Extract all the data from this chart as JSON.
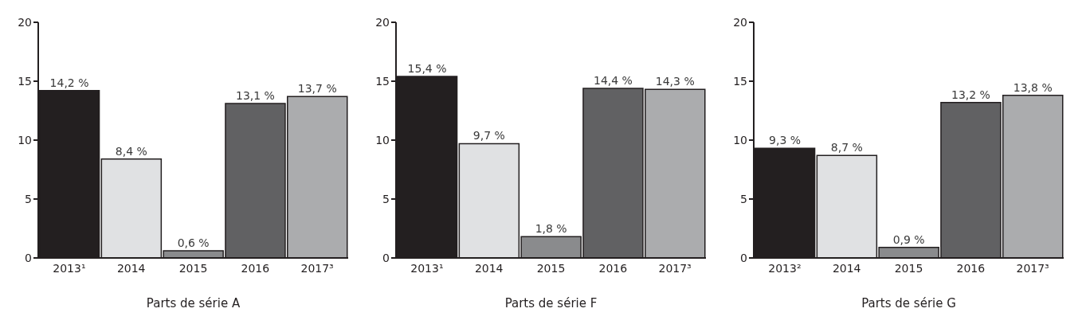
{
  "chart_data": [
    {
      "type": "bar",
      "xlabel": "Parts de série A",
      "categories": [
        "2013¹",
        "2014",
        "2015",
        "2016",
        "2017³"
      ],
      "values": [
        14.2,
        8.4,
        0.6,
        13.1,
        13.7
      ],
      "value_labels": [
        "14,2 %",
        "8,4 %",
        "0,6 %",
        "13,1 %",
        "13,7 %"
      ],
      "colors": [
        "#231f20",
        "#e0e1e3",
        "#8a8b8d",
        "#616163",
        "#abacae"
      ],
      "ylim": [
        0,
        20
      ],
      "yticks": [
        0,
        5,
        10,
        15,
        20
      ],
      "grid": false,
      "legend": false
    },
    {
      "type": "bar",
      "xlabel": "Parts de série F",
      "categories": [
        "2013¹",
        "2014",
        "2015",
        "2016",
        "2017³"
      ],
      "values": [
        15.4,
        9.7,
        1.8,
        14.4,
        14.3
      ],
      "value_labels": [
        "15,4 %",
        "9,7 %",
        "1,8 %",
        "14,4 %",
        "14,3 %"
      ],
      "colors": [
        "#231f20",
        "#e0e1e3",
        "#8a8b8d",
        "#616163",
        "#abacae"
      ],
      "ylim": [
        0,
        20
      ],
      "yticks": [
        0,
        5,
        10,
        15,
        20
      ],
      "grid": false,
      "legend": false
    },
    {
      "type": "bar",
      "xlabel": "Parts de série G",
      "categories": [
        "2013²",
        "2014",
        "2015",
        "2016",
        "2017³"
      ],
      "values": [
        9.3,
        8.7,
        0.9,
        13.2,
        13.8
      ],
      "value_labels": [
        "9,3 %",
        "8,7 %",
        "0,9 %",
        "13,2 %",
        "13,8 %"
      ],
      "colors": [
        "#231f20",
        "#e0e1e3",
        "#8a8b8d",
        "#616163",
        "#abacae"
      ],
      "ylim": [
        0,
        20
      ],
      "yticks": [
        0,
        5,
        10,
        15,
        20
      ],
      "grid": false,
      "legend": false
    }
  ]
}
